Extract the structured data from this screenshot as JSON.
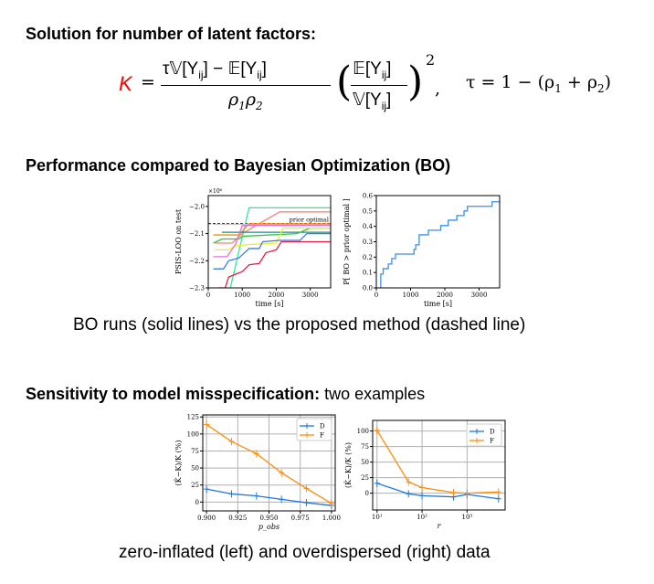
{
  "headings": {
    "solution": "Solution for number of latent factors:",
    "performance": "Performance compared to Bayesian Optimization (BO)",
    "sensitivity_bold": "Sensitivity to model misspecification:",
    "sensitivity_rest": " two examples"
  },
  "equation": {
    "lhs": "K",
    "equals": "=",
    "numerator": "τ𝕍[Y_ij] − 𝔼[Y_ij]",
    "num_parts": [
      "τ𝕍[Y",
      "ij",
      "] − 𝔼[Y",
      "ij",
      "]"
    ],
    "denominator": "ρ1ρ2",
    "den_parts": [
      "ρ",
      "1",
      "ρ",
      "2"
    ],
    "ratio_num": [
      "𝔼[Y",
      "ij",
      "]"
    ],
    "ratio_den": [
      "𝕍[Y",
      "ij",
      "]"
    ],
    "exponent": "2",
    "comma": ",",
    "tau_def": [
      "τ = 1 − (ρ",
      "1",
      " + ρ",
      "2",
      ")"
    ],
    "lhs_color": "#ff0000"
  },
  "captions": {
    "bo": "BO runs (solid lines) vs the proposed method (dashed line)",
    "misspec": "zero-inflated (left) and overdispersed (right) data"
  },
  "chart_data": [
    {
      "type": "line",
      "xlabel": "time [s]",
      "ylabel": "PSIS-LOO on test",
      "scale_label": "×10⁶",
      "xlim": [
        0,
        3600
      ],
      "ylim": [
        -2.3,
        -1.96
      ],
      "xticks": [
        0,
        1000,
        2000,
        3000
      ],
      "yticks": [
        -2.3,
        -2.2,
        -2.1,
        -2.0
      ],
      "ytick_labels": [
        "−2.3",
        "−2.2",
        "−2.1",
        "−2.0"
      ],
      "grid": false,
      "reference_line": {
        "label": "prior optimal",
        "y": -2.063,
        "color": "#333333"
      },
      "series": [
        {
          "color": "#2ee8a0",
          "points": [
            [
              650,
              -2.3
            ],
            [
              1200,
              -2.005
            ],
            [
              3600,
              -2.005
            ]
          ]
        },
        {
          "color": "#f4857a",
          "points": [
            [
              200,
              -2.135
            ],
            [
              700,
              -2.135
            ],
            [
              1000,
              -2.1
            ],
            [
              2100,
              -2.02
            ],
            [
              3600,
              -2.02
            ]
          ]
        },
        {
          "color": "#f8b4b4",
          "points": [
            [
              200,
              -2.066
            ],
            [
              3600,
              -2.066
            ]
          ]
        },
        {
          "color": "#ff8c00",
          "points": [
            [
              150,
              -2.105
            ],
            [
              900,
              -2.105
            ],
            [
              1200,
              -2.064
            ],
            [
              3600,
              -2.064
            ]
          ]
        },
        {
          "color": "#2a8a8a",
          "points": [
            [
              400,
              -2.095
            ],
            [
              3600,
              -2.095
            ]
          ]
        },
        {
          "color": "#3cbf3c",
          "points": [
            [
              150,
              -2.135
            ],
            [
              400,
              -2.12
            ],
            [
              900,
              -2.12
            ],
            [
              1000,
              -2.11
            ],
            [
              2600,
              -2.1
            ],
            [
              3000,
              -2.08
            ],
            [
              3600,
              -2.08
            ]
          ]
        },
        {
          "color": "#eeee22",
          "points": [
            [
              200,
              -2.16
            ],
            [
              600,
              -2.16
            ],
            [
              800,
              -2.145
            ],
            [
              1200,
              -2.14
            ],
            [
              2000,
              -2.135
            ],
            [
              2200,
              -2.08
            ],
            [
              3600,
              -2.08
            ]
          ]
        },
        {
          "color": "#e070e0",
          "points": [
            [
              150,
              -2.185
            ],
            [
              550,
              -2.185
            ],
            [
              800,
              -2.14
            ],
            [
              1000,
              -2.07
            ],
            [
              3600,
              -2.07
            ]
          ]
        },
        {
          "color": "#3a7ee0",
          "points": [
            [
              150,
              -2.23
            ],
            [
              450,
              -2.23
            ],
            [
              600,
              -2.2
            ],
            [
              900,
              -2.19
            ],
            [
              1200,
              -2.155
            ],
            [
              1500,
              -2.155
            ],
            [
              1600,
              -2.13
            ],
            [
              2100,
              -2.125
            ],
            [
              2700,
              -2.125
            ],
            [
              2900,
              -2.1
            ],
            [
              3600,
              -2.1
            ]
          ]
        },
        {
          "color": "#e0204a",
          "points": [
            [
              300,
              -2.3
            ],
            [
              500,
              -2.3
            ],
            [
              600,
              -2.26
            ],
            [
              800,
              -2.25
            ],
            [
              1000,
              -2.24
            ],
            [
              1200,
              -2.215
            ],
            [
              1500,
              -2.21
            ],
            [
              1700,
              -2.17
            ],
            [
              2000,
              -2.16
            ],
            [
              2150,
              -2.13
            ],
            [
              3600,
              -2.13
            ]
          ]
        }
      ]
    },
    {
      "type": "line",
      "step": true,
      "xlabel": "time [s]",
      "ylabel": "P[ BO > prior optimal ]",
      "xlim": [
        0,
        3600
      ],
      "ylim": [
        0,
        0.6
      ],
      "xticks": [
        0,
        1000,
        2000,
        3000
      ],
      "yticks": [
        0,
        0.1,
        0.2,
        0.3,
        0.4,
        0.5,
        0.6
      ],
      "ytick_labels": [
        "0.0",
        "0.1",
        "0.2",
        "0.3",
        "0.4",
        "0.5",
        "0.6"
      ],
      "grid": false,
      "series": [
        {
          "color": "#3a8ef0",
          "points": [
            [
              120,
              0
            ],
            [
              130,
              0.09
            ],
            [
              200,
              0.125
            ],
            [
              350,
              0.155
            ],
            [
              450,
              0.19
            ],
            [
              560,
              0.22
            ],
            [
              1100,
              0.25
            ],
            [
              1150,
              0.28
            ],
            [
              1250,
              0.345
            ],
            [
              1520,
              0.375
            ],
            [
              1880,
              0.405
            ],
            [
              2100,
              0.44
            ],
            [
              2350,
              0.47
            ],
            [
              2560,
              0.5
            ],
            [
              2660,
              0.53
            ],
            [
              3380,
              0.56
            ],
            [
              3600,
              0.56
            ]
          ]
        }
      ]
    },
    {
      "type": "line",
      "xlabel": "p_obs",
      "ylabel": "(K̂−K)/K (%)",
      "xlim": [
        0.897,
        1.003
      ],
      "ylim": [
        -13,
        128
      ],
      "xticks": [
        0.9,
        0.925,
        0.95,
        0.975,
        1.0
      ],
      "xtick_labels": [
        "0.900",
        "0.925",
        "0.950",
        "0.975",
        "1.000"
      ],
      "yticks": [
        0,
        25,
        50,
        75,
        100,
        125
      ],
      "grid": true,
      "legend": "top-right",
      "x": [
        0.9,
        0.92,
        0.94,
        0.96,
        0.98,
        1.0
      ],
      "series": [
        {
          "name": "D",
          "color": "#1f77e4",
          "values": [
            19,
            12,
            9,
            4,
            -1,
            -5
          ]
        },
        {
          "name": "F",
          "color": "#ff8c0e",
          "values": [
            114,
            89,
            71,
            43,
            20,
            -2
          ]
        }
      ]
    },
    {
      "type": "line",
      "xscale": "log",
      "xlabel": "r",
      "ylabel": "(K̂−K)/K (%)",
      "xlim": [
        8,
        7000
      ],
      "ylim": [
        -27,
        117
      ],
      "xticks": [
        10,
        100,
        1000
      ],
      "xtick_labels": [
        "10¹",
        "10²",
        "10³"
      ],
      "yticks": [
        0,
        25,
        50,
        75,
        100
      ],
      "grid": true,
      "legend": "top-right",
      "x": [
        10,
        50,
        100,
        500,
        1000,
        5000
      ],
      "series": [
        {
          "name": "D",
          "color": "#1f77e4",
          "values": [
            16,
            -1,
            -4,
            -6,
            -2,
            -9
          ]
        },
        {
          "name": "F",
          "color": "#ff8c0e",
          "values": [
            101,
            18,
            9,
            1,
            0,
            2
          ]
        }
      ]
    }
  ]
}
